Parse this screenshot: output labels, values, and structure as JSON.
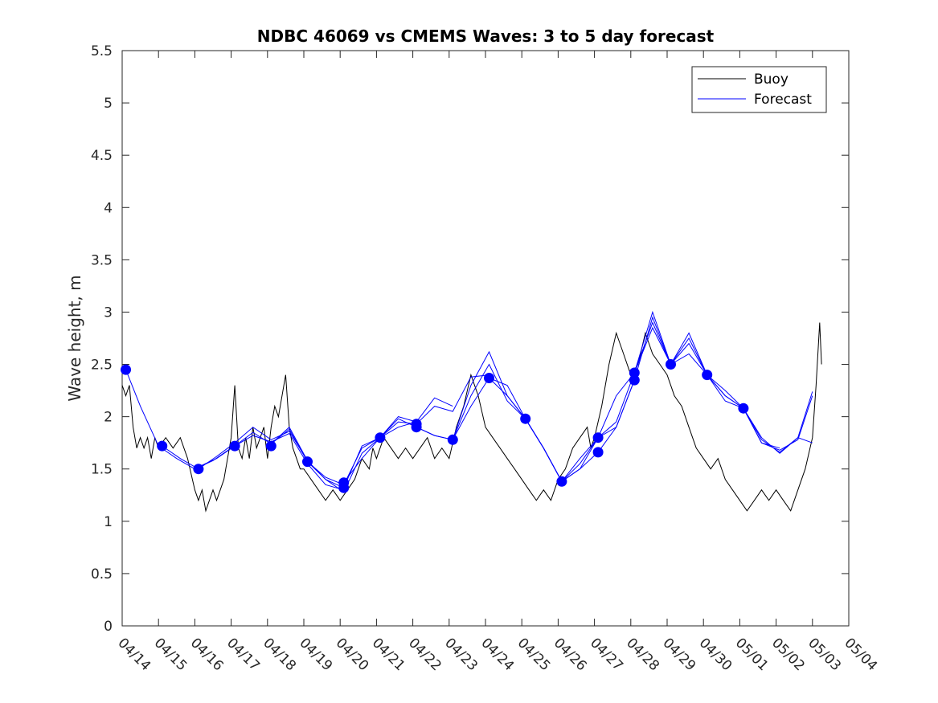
{
  "chart_data": {
    "type": "line",
    "title": "NDBC 46069 vs CMEMS Waves: 3 to 5 day forecast",
    "xlabel": "",
    "ylabel": "Wave height, m",
    "ylim": [
      0,
      5.5
    ],
    "yticks": [
      0,
      0.5,
      1,
      1.5,
      2,
      2.5,
      3,
      3.5,
      4,
      4.5,
      5,
      5.5
    ],
    "ytick_labels": [
      "0",
      "0.5",
      "1",
      "1.5",
      "2",
      "2.5",
      "3",
      "3.5",
      "4",
      "4.5",
      "5",
      "5.5"
    ],
    "xlim_days": [
      0,
      20
    ],
    "xtick_labels": [
      "04/14",
      "04/15",
      "04/16",
      "04/17",
      "04/18",
      "04/19",
      "04/20",
      "04/21",
      "04/22",
      "04/23",
      "04/24",
      "04/25",
      "04/26",
      "04/27",
      "04/28",
      "04/29",
      "04/30",
      "05/01",
      "05/02",
      "05/03",
      "05/04"
    ],
    "legend": {
      "position": "top-right",
      "entries": [
        "Buoy",
        "Forecast"
      ]
    },
    "colors": {
      "buoy": "#000000",
      "forecast": "#0000ff",
      "markers": "#0000ff"
    },
    "series": [
      {
        "name": "Buoy",
        "x": [
          0.0,
          0.1,
          0.2,
          0.3,
          0.4,
          0.5,
          0.6,
          0.7,
          0.8,
          0.9,
          1.0,
          1.2,
          1.4,
          1.6,
          1.8,
          2.0,
          2.1,
          2.2,
          2.3,
          2.4,
          2.5,
          2.6,
          2.8,
          2.9,
          3.0,
          3.1,
          3.2,
          3.3,
          3.4,
          3.5,
          3.6,
          3.7,
          3.8,
          3.9,
          4.0,
          4.1,
          4.2,
          4.3,
          4.4,
          4.5,
          4.6,
          4.7,
          4.8,
          4.9,
          5.0,
          5.2,
          5.4,
          5.6,
          5.8,
          6.0,
          6.2,
          6.4,
          6.6,
          6.8,
          6.9,
          7.0,
          7.2,
          7.4,
          7.6,
          7.8,
          8.0,
          8.2,
          8.4,
          8.6,
          8.8,
          9.0,
          9.2,
          9.4,
          9.6,
          9.8,
          10.0,
          10.2,
          10.4,
          10.6,
          10.8,
          11.0,
          11.2,
          11.4,
          11.6,
          11.8,
          12.0,
          12.2,
          12.4,
          12.6,
          12.8,
          12.9,
          13.0,
          13.2,
          13.4,
          13.6,
          13.8,
          14.0,
          14.2,
          14.4,
          14.6,
          14.8,
          15.0,
          15.2,
          15.4,
          15.6,
          15.8,
          16.0,
          16.2,
          16.4,
          16.6,
          16.8,
          17.0,
          17.2,
          17.4,
          17.6,
          17.8,
          18.0,
          18.2,
          18.4,
          18.6,
          18.8,
          19.0,
          19.1,
          19.2,
          19.25
        ],
        "values": [
          2.3,
          2.2,
          2.3,
          1.9,
          1.7,
          1.8,
          1.7,
          1.8,
          1.6,
          1.8,
          1.7,
          1.8,
          1.7,
          1.8,
          1.6,
          1.3,
          1.2,
          1.3,
          1.1,
          1.2,
          1.3,
          1.2,
          1.4,
          1.6,
          1.8,
          2.3,
          1.7,
          1.6,
          1.8,
          1.6,
          1.9,
          1.7,
          1.8,
          1.9,
          1.6,
          1.9,
          2.1,
          2.0,
          2.2,
          2.4,
          1.9,
          1.7,
          1.6,
          1.5,
          1.5,
          1.4,
          1.3,
          1.2,
          1.3,
          1.2,
          1.3,
          1.4,
          1.6,
          1.5,
          1.7,
          1.6,
          1.8,
          1.7,
          1.6,
          1.7,
          1.6,
          1.7,
          1.8,
          1.6,
          1.7,
          1.6,
          1.9,
          2.1,
          2.4,
          2.2,
          1.9,
          1.8,
          1.7,
          1.6,
          1.5,
          1.4,
          1.3,
          1.2,
          1.3,
          1.2,
          1.4,
          1.5,
          1.7,
          1.8,
          1.9,
          1.7,
          1.8,
          2.1,
          2.5,
          2.8,
          2.6,
          2.4,
          2.5,
          2.8,
          2.6,
          2.5,
          2.4,
          2.2,
          2.1,
          1.9,
          1.7,
          1.6,
          1.5,
          1.6,
          1.4,
          1.3,
          1.2,
          1.1,
          1.2,
          1.3,
          1.2,
          1.3,
          1.2,
          1.1,
          1.3,
          1.5,
          1.8,
          2.3,
          2.9,
          2.5
        ]
      },
      {
        "name": "Forecast",
        "segments": [
          {
            "x": [
              0.1,
              0.5,
              1.0,
              1.5,
              2.0,
              2.5,
              3.0
            ],
            "values": [
              2.45,
              2.1,
              1.72,
              1.6,
              1.5,
              1.58,
              1.7
            ]
          },
          {
            "x": [
              1.1,
              1.6,
              2.1,
              2.6,
              3.1,
              3.6,
              4.1,
              4.6,
              5.1
            ],
            "values": [
              1.72,
              1.6,
              1.5,
              1.62,
              1.75,
              1.9,
              1.78,
              1.86,
              1.58
            ]
          },
          {
            "x": [
              2.1,
              2.6,
              3.1,
              3.6,
              4.1,
              4.6,
              5.1,
              5.6,
              6.1
            ],
            "values": [
              1.52,
              1.6,
              1.72,
              1.82,
              1.76,
              1.84,
              1.55,
              1.35,
              1.3
            ]
          },
          {
            "x": [
              3.1,
              3.6,
              4.1,
              4.6,
              5.1,
              5.6,
              6.1,
              6.6,
              7.1
            ],
            "values": [
              1.72,
              1.85,
              1.74,
              1.9,
              1.58,
              1.4,
              1.28,
              1.65,
              1.8
            ]
          },
          {
            "x": [
              4.1,
              4.6,
              5.1,
              5.6,
              6.1,
              6.6,
              7.1,
              7.6,
              8.1
            ],
            "values": [
              1.74,
              1.88,
              1.57,
              1.42,
              1.35,
              1.7,
              1.8,
              2.0,
              1.95
            ]
          },
          {
            "x": [
              5.1,
              5.6,
              6.1,
              6.6,
              7.1,
              7.6,
              8.1,
              8.6,
              9.1
            ],
            "values": [
              1.57,
              1.4,
              1.32,
              1.72,
              1.8,
              1.9,
              1.95,
              2.18,
              2.1
            ]
          },
          {
            "x": [
              6.1,
              6.6,
              7.1,
              7.6,
              8.1,
              8.6,
              9.1,
              9.6,
              10.1
            ],
            "values": [
              1.37,
              1.6,
              1.8,
              1.95,
              1.93,
              2.1,
              2.05,
              2.38,
              2.4
            ]
          },
          {
            "x": [
              7.1,
              7.6,
              8.1,
              8.6,
              9.1,
              9.6,
              10.1,
              10.6,
              11.1
            ],
            "values": [
              1.8,
              1.98,
              1.9,
              1.82,
              1.78,
              2.3,
              2.62,
              2.2,
              1.98
            ]
          },
          {
            "x": [
              8.1,
              8.6,
              9.1,
              9.6,
              10.1,
              10.6,
              11.1,
              11.6,
              12.1
            ],
            "values": [
              1.9,
              1.82,
              1.78,
              2.2,
              2.5,
              2.15,
              1.98,
              1.7,
              1.38
            ]
          },
          {
            "x": [
              9.1,
              9.6,
              10.1,
              10.6,
              11.1,
              11.6,
              12.1,
              12.6,
              13.1
            ],
            "values": [
              1.78,
              2.1,
              2.37,
              2.2,
              1.98,
              1.7,
              1.38,
              1.5,
              1.66
            ]
          },
          {
            "x": [
              10.1,
              10.6,
              11.1,
              11.6,
              12.1,
              12.6,
              13.1,
              13.6,
              14.1
            ],
            "values": [
              2.37,
              2.3,
              1.98,
              1.7,
              1.38,
              1.5,
              1.8,
              1.9,
              2.35
            ]
          },
          {
            "x": [
              11.1,
              11.6,
              12.1,
              12.6,
              13.1,
              13.6,
              14.1,
              14.6,
              15.1
            ],
            "values": [
              1.98,
              1.7,
              1.38,
              1.55,
              1.8,
              2.2,
              2.42,
              2.9,
              2.5
            ]
          },
          {
            "x": [
              12.1,
              12.6,
              13.1,
              13.6,
              14.1,
              14.6,
              15.1,
              15.6,
              16.1
            ],
            "values": [
              1.38,
              1.6,
              1.8,
              1.95,
              2.42,
              3.0,
              2.5,
              2.6,
              2.4
            ]
          },
          {
            "x": [
              13.1,
              13.6,
              14.1,
              14.6,
              15.1,
              15.6,
              16.1,
              16.6,
              17.1
            ],
            "values": [
              1.66,
              1.9,
              2.35,
              2.95,
              2.5,
              2.8,
              2.4,
              2.2,
              2.08
            ]
          },
          {
            "x": [
              14.1,
              14.6,
              15.1,
              15.6,
              16.1,
              16.6,
              17.1,
              17.6,
              18.1
            ],
            "values": [
              2.42,
              2.85,
              2.5,
              2.7,
              2.4,
              2.25,
              2.08,
              1.75,
              1.7
            ]
          },
          {
            "x": [
              15.1,
              15.6,
              16.1,
              16.6,
              17.1,
              17.6,
              18.1,
              18.6,
              19.0
            ],
            "values": [
              2.5,
              2.75,
              2.4,
              2.2,
              2.08,
              1.8,
              1.65,
              1.8,
              1.75
            ]
          },
          {
            "x": [
              16.1,
              16.6,
              17.1,
              17.6,
              18.1,
              18.6,
              19.0
            ],
            "values": [
              2.4,
              2.15,
              2.08,
              1.75,
              1.68,
              1.78,
              2.2
            ]
          },
          {
            "x": [
              17.1,
              17.6,
              18.1,
              18.6,
              19.0
            ],
            "values": [
              2.08,
              1.78,
              1.66,
              1.8,
              2.24
            ]
          }
        ]
      }
    ],
    "markers": {
      "x": [
        0.1,
        1.1,
        2.1,
        3.1,
        4.1,
        5.1,
        6.1,
        6.1,
        7.1,
        8.1,
        8.1,
        9.1,
        10.1,
        11.1,
        12.1,
        13.1,
        13.1,
        14.1,
        14.1,
        15.1,
        16.1,
        17.1
      ],
      "values": [
        2.45,
        1.72,
        1.5,
        1.72,
        1.72,
        1.57,
        1.37,
        1.32,
        1.8,
        1.9,
        1.93,
        1.78,
        2.37,
        1.98,
        1.38,
        1.66,
        1.8,
        2.35,
        2.42,
        2.5,
        2.4,
        2.08
      ]
    }
  }
}
